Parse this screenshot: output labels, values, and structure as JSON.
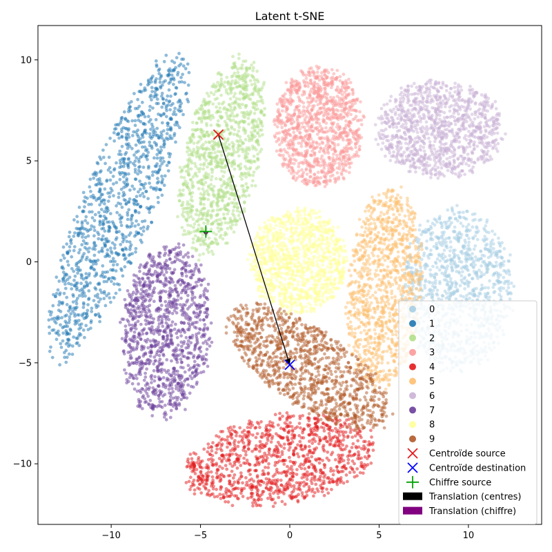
{
  "chart_data": {
    "type": "scatter",
    "title": "Latent t-SNE",
    "xlabel": "",
    "ylabel": "",
    "xlim": [
      -14.1,
      14.1
    ],
    "ylim": [
      -13.0,
      11.7
    ],
    "xticks": [
      -10,
      -5,
      0,
      5,
      10
    ],
    "xtick_labels": [
      "−10",
      "−5",
      "0",
      "5",
      "10"
    ],
    "yticks": [
      -10,
      -5,
      0,
      5,
      10
    ],
    "ytick_labels": [
      "−10",
      "−5",
      "0",
      "5",
      "10"
    ],
    "grid": false,
    "legend_position": "lower-right",
    "series": [
      {
        "name": "0",
        "color": "#a6cee3",
        "cluster": {
          "center": [
            9.4,
            -1.4
          ],
          "radius": [
            3.1,
            4.0
          ],
          "angle": 0
        }
      },
      {
        "name": "1",
        "color": "#1f78b4",
        "cluster": {
          "center": [
            -9.6,
            2.8
          ],
          "radius": [
            2.0,
            8.3
          ],
          "angle": -25
        }
      },
      {
        "name": "2",
        "color": "#b2df8a",
        "cluster": {
          "center": [
            -3.8,
            5.2
          ],
          "radius": [
            2.1,
            5.0
          ],
          "angle": -15
        }
      },
      {
        "name": "3",
        "color": "#fb9a99",
        "cluster": {
          "center": [
            1.6,
            6.7
          ],
          "radius": [
            2.5,
            3.0
          ],
          "angle": 0
        }
      },
      {
        "name": "4",
        "color": "#e31a1c",
        "cluster": {
          "center": [
            -0.6,
            -9.8
          ],
          "radius": [
            5.4,
            2.2
          ],
          "angle": 8
        }
      },
      {
        "name": "5",
        "color": "#fdbf6f",
        "cluster": {
          "center": [
            5.3,
            -1.3
          ],
          "radius": [
            2.1,
            5.0
          ],
          "angle": -5
        }
      },
      {
        "name": "6",
        "color": "#cab2d6",
        "cluster": {
          "center": [
            8.4,
            6.6
          ],
          "radius": [
            3.5,
            2.4
          ],
          "angle": 0
        }
      },
      {
        "name": "7",
        "color": "#6a3d9a",
        "cluster": {
          "center": [
            -6.9,
            -3.4
          ],
          "radius": [
            2.5,
            4.3
          ],
          "angle": -5
        }
      },
      {
        "name": "8",
        "color": "#ffff99",
        "cluster": {
          "center": [
            0.5,
            0.0
          ],
          "radius": [
            2.7,
            2.6
          ],
          "angle": 0
        }
      },
      {
        "name": "9",
        "color": "#b15928",
        "cluster": {
          "center": [
            1.0,
            -5.2
          ],
          "radius": [
            5.1,
            2.0
          ],
          "angle": -30
        }
      }
    ],
    "markers": [
      {
        "name": "Centroïde source",
        "type": "x",
        "color": "#e31a1c",
        "x": -4.0,
        "y": 6.3
      },
      {
        "name": "Centroïde destination",
        "type": "x",
        "color": "#0000ff",
        "x": 0.0,
        "y": -5.1
      },
      {
        "name": "Chiffre source",
        "type": "plus",
        "color": "#00a000",
        "x": -4.7,
        "y": 1.5
      }
    ],
    "arrows": [
      {
        "name": "Translation (centres)",
        "color": "#000000",
        "from": [
          -4.0,
          6.3
        ],
        "to": [
          0.0,
          -5.1
        ]
      },
      {
        "name": "Translation (chiffre)",
        "color": "#800080",
        "from": [
          -4.7,
          1.5
        ],
        "to": [
          -4.7,
          1.3
        ]
      }
    ]
  }
}
